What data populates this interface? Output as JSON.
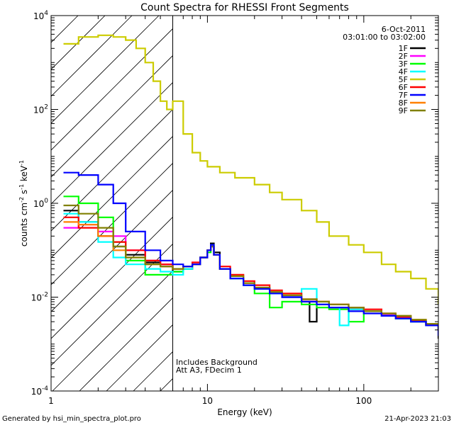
{
  "chart_data": {
    "type": "line",
    "title": "Count Spectra for RHESSI Front Segments",
    "xlabel": "Energy (keV)",
    "ylabel": "counts cm-2 s-1 keV-1",
    "ylabel_parts": {
      "base": "counts cm",
      "exp1": "-2",
      "mid": " s",
      "exp2": "-1",
      "mid2": " keV",
      "exp3": "-1"
    },
    "xscale": "log",
    "yscale": "log",
    "xlim": [
      1,
      300
    ],
    "ylim": [
      0.0001,
      10000
    ],
    "x_ticks": [
      {
        "value": 1,
        "label": "1"
      },
      {
        "value": 10,
        "label": "10"
      },
      {
        "value": 100,
        "label": "100"
      }
    ],
    "y_ticks": [
      {
        "value": 0.0001,
        "base": "10",
        "exp": "-4"
      },
      {
        "value": 0.01,
        "base": "10",
        "exp": "-2"
      },
      {
        "value": 1,
        "base": "10",
        "exp": "0"
      },
      {
        "value": 100,
        "base": "10",
        "exp": "2"
      },
      {
        "value": 10000,
        "base": "10",
        "exp": "4"
      }
    ],
    "hatched_region_x": [
      1,
      6
    ],
    "vertical_line_x": 6,
    "date": "6-Oct-2011",
    "time_range": "03:01:00 to 03:02:00",
    "legend_position": "top-right",
    "annotations": [
      "Includes Background",
      "Att A3, FDecim  1"
    ],
    "series": [
      {
        "name": "1F",
        "color": "#000000",
        "x": [
          1.2,
          1.5,
          2.0,
          2.5,
          3.0,
          4.0,
          5.0,
          6.0,
          7.0,
          8.0,
          9.0,
          10.0,
          10.5,
          11.0,
          12.0,
          14.0,
          17.0,
          20.0,
          25.0,
          30.0,
          40.0,
          45.0,
          50.0,
          60.0,
          80.0,
          100.0,
          130.0,
          160.0,
          200.0,
          250.0,
          300.0
        ],
        "y": [
          0.7,
          0.4,
          0.2,
          0.12,
          0.08,
          0.055,
          0.045,
          0.035,
          0.04,
          0.05,
          0.07,
          0.1,
          0.14,
          0.09,
          0.04,
          0.025,
          0.018,
          0.015,
          0.012,
          0.01,
          0.008,
          0.003,
          0.007,
          0.006,
          0.0055,
          0.005,
          0.004,
          0.0035,
          0.003,
          0.0025,
          0.0013
        ]
      },
      {
        "name": "2F",
        "color": "#ff00ff",
        "x": [
          1.2,
          1.5,
          2.0,
          2.5,
          3.0,
          4.0,
          5.0,
          6.0,
          7.0,
          8.0,
          9.0,
          10.0,
          10.5,
          11.0,
          12.0,
          14.0,
          17.0,
          20.0,
          25.0,
          30.0,
          40.0,
          50.0,
          60.0,
          80.0,
          100.0,
          130.0,
          160.0,
          200.0,
          250.0,
          300.0
        ],
        "y": [
          0.3,
          0.35,
          0.25,
          0.2,
          0.1,
          0.06,
          0.05,
          0.04,
          0.045,
          0.055,
          0.07,
          0.1,
          0.12,
          0.08,
          0.04,
          0.025,
          0.018,
          0.015,
          0.012,
          0.01,
          0.008,
          0.007,
          0.006,
          0.0055,
          0.005,
          0.0042,
          0.0036,
          0.003,
          0.0026,
          0.0022
        ]
      },
      {
        "name": "3F",
        "color": "#00ff00",
        "x": [
          1.2,
          1.5,
          2.0,
          2.5,
          3.0,
          4.0,
          5.0,
          6.0,
          7.0,
          8.0,
          9.0,
          10.0,
          10.5,
          11.0,
          12.0,
          14.0,
          17.0,
          20.0,
          25.0,
          30.0,
          40.0,
          50.0,
          60.0,
          80.0,
          100.0,
          130.0,
          160.0,
          200.0,
          250.0,
          300.0
        ],
        "y": [
          1.4,
          1.0,
          0.5,
          0.15,
          0.06,
          0.03,
          0.03,
          0.035,
          0.04,
          0.05,
          0.07,
          0.09,
          0.12,
          0.08,
          0.04,
          0.025,
          0.018,
          0.012,
          0.006,
          0.008,
          0.007,
          0.006,
          0.0055,
          0.003,
          0.005,
          0.004,
          0.0035,
          0.003,
          0.0025,
          0.002
        ]
      },
      {
        "name": "4F",
        "color": "#00ffff",
        "x": [
          1.2,
          1.5,
          2.0,
          2.5,
          3.0,
          4.0,
          5.0,
          6.0,
          7.0,
          8.0,
          9.0,
          10.0,
          10.5,
          11.0,
          12.0,
          14.0,
          17.0,
          20.0,
          25.0,
          30.0,
          40.0,
          50.0,
          60.0,
          70.0,
          80.0,
          100.0,
          130.0,
          160.0,
          200.0,
          250.0,
          300.0
        ],
        "y": [
          0.6,
          0.4,
          0.15,
          0.07,
          0.05,
          0.04,
          0.035,
          0.03,
          0.04,
          0.05,
          0.07,
          0.1,
          0.13,
          0.08,
          0.04,
          0.025,
          0.018,
          0.015,
          0.012,
          0.01,
          0.015,
          0.007,
          0.006,
          0.0025,
          0.0055,
          0.005,
          0.004,
          0.0035,
          0.003,
          0.0025,
          0.002
        ]
      },
      {
        "name": "5F",
        "color": "#cccc00",
        "x": [
          1.2,
          1.5,
          2.0,
          2.5,
          3.0,
          3.5,
          4.0,
          4.5,
          5.0,
          5.5,
          6.0,
          7.0,
          8.0,
          9.0,
          10.0,
          12.0,
          15.0,
          20.0,
          25.0,
          30.0,
          40.0,
          50.0,
          60.0,
          80.0,
          100.0,
          130.0,
          160.0,
          200.0,
          250.0,
          300.0
        ],
        "y": [
          2500,
          3500,
          3800,
          3500,
          3000,
          2000,
          1000,
          400,
          150,
          100,
          150,
          30,
          12,
          8,
          6,
          4.5,
          3.5,
          2.5,
          1.7,
          1.2,
          0.7,
          0.4,
          0.2,
          0.13,
          0.09,
          0.05,
          0.035,
          0.025,
          0.015,
          0.007
        ]
      },
      {
        "name": "6F",
        "color": "#ff0000",
        "x": [
          1.2,
          1.5,
          2.0,
          2.5,
          3.0,
          4.0,
          5.0,
          6.0,
          7.0,
          8.0,
          9.0,
          10.0,
          10.5,
          11.0,
          12.0,
          14.0,
          17.0,
          20.0,
          25.0,
          30.0,
          40.0,
          50.0,
          60.0,
          80.0,
          100.0,
          130.0,
          160.0,
          200.0,
          250.0,
          300.0
        ],
        "y": [
          0.5,
          0.3,
          0.2,
          0.15,
          0.1,
          0.06,
          0.05,
          0.04,
          0.045,
          0.055,
          0.07,
          0.1,
          0.12,
          0.08,
          0.045,
          0.03,
          0.022,
          0.018,
          0.014,
          0.012,
          0.009,
          0.008,
          0.007,
          0.006,
          0.0055,
          0.0045,
          0.0038,
          0.0032,
          0.0026,
          0.002
        ]
      },
      {
        "name": "7F",
        "color": "#0000ff",
        "x": [
          1.2,
          1.5,
          2.0,
          2.5,
          3.0,
          4.0,
          5.0,
          6.0,
          7.0,
          8.0,
          9.0,
          10.0,
          10.5,
          11.0,
          12.0,
          14.0,
          17.0,
          20.0,
          25.0,
          30.0,
          40.0,
          50.0,
          60.0,
          80.0,
          100.0,
          130.0,
          160.0,
          200.0,
          250.0,
          300.0
        ],
        "y": [
          4.5,
          4.0,
          2.5,
          1.0,
          0.25,
          0.1,
          0.06,
          0.05,
          0.045,
          0.05,
          0.07,
          0.1,
          0.13,
          0.08,
          0.04,
          0.025,
          0.018,
          0.015,
          0.012,
          0.01,
          0.008,
          0.007,
          0.006,
          0.005,
          0.0045,
          0.004,
          0.0035,
          0.003,
          0.0025,
          0.0015
        ]
      },
      {
        "name": "8F",
        "color": "#ff8000",
        "x": [
          1.2,
          1.5,
          2.0,
          2.5,
          3.0,
          4.0,
          5.0,
          6.0,
          7.0,
          8.0,
          9.0,
          10.0,
          10.5,
          11.0,
          12.0,
          14.0,
          17.0,
          20.0,
          25.0,
          30.0,
          40.0,
          50.0,
          60.0,
          80.0,
          100.0,
          130.0,
          160.0,
          200.0,
          250.0,
          300.0
        ],
        "y": [
          0.4,
          0.35,
          0.2,
          0.1,
          0.07,
          0.05,
          0.045,
          0.04,
          0.045,
          0.05,
          0.07,
          0.1,
          0.12,
          0.08,
          0.04,
          0.028,
          0.02,
          0.016,
          0.013,
          0.011,
          0.009,
          0.008,
          0.007,
          0.006,
          0.005,
          0.0045,
          0.004,
          0.0033,
          0.0027,
          0.002
        ]
      },
      {
        "name": "9F",
        "color": "#808000",
        "x": [
          1.2,
          1.5,
          2.0,
          2.5,
          3.0,
          4.0,
          5.0,
          6.0,
          7.0,
          8.0,
          9.0,
          10.0,
          10.5,
          11.0,
          12.0,
          14.0,
          17.0,
          20.0,
          25.0,
          30.0,
          40.0,
          50.0,
          60.0,
          80.0,
          100.0,
          130.0,
          160.0,
          200.0,
          250.0,
          300.0
        ],
        "y": [
          0.9,
          0.6,
          0.3,
          0.12,
          0.07,
          0.05,
          0.045,
          0.04,
          0.045,
          0.05,
          0.07,
          0.1,
          0.12,
          0.08,
          0.04,
          0.028,
          0.02,
          0.016,
          0.013,
          0.011,
          0.009,
          0.008,
          0.007,
          0.006,
          0.005,
          0.0045,
          0.004,
          0.0033,
          0.0027,
          0.002
        ]
      }
    ]
  },
  "footer": {
    "generated_by": "Generated by hsi_min_spectra_plot.pro",
    "timestamp": "21-Apr-2023 21:03"
  }
}
